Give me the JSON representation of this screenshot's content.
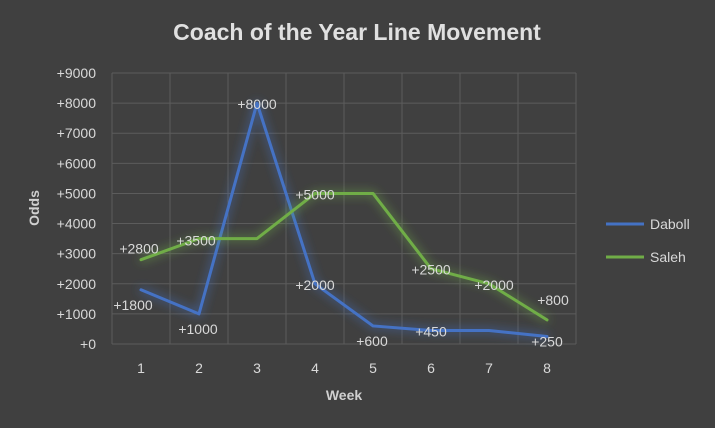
{
  "chart_data": {
    "type": "line",
    "title": "Coach of the Year Line Movement",
    "xlabel": "Week",
    "ylabel": "Odds",
    "categories": [
      "1",
      "2",
      "3",
      "4",
      "5",
      "6",
      "7",
      "8"
    ],
    "ylim": [
      0,
      9000
    ],
    "yticks": [
      0,
      1000,
      2000,
      3000,
      4000,
      5000,
      6000,
      7000,
      8000,
      9000
    ],
    "ytick_labels": [
      "+0",
      "+1000",
      "+2000",
      "+3000",
      "+4000",
      "+5000",
      "+6000",
      "+7000",
      "+8000",
      "+9000"
    ],
    "grid": true,
    "legend_position": "right",
    "series": [
      {
        "name": "Daboll",
        "color": "#4472c4",
        "values": [
          1800,
          1000,
          8000,
          2000,
          600,
          450,
          450,
          250
        ],
        "labels": [
          "+1800",
          "+1000",
          "+8000",
          "+2000",
          "+600",
          "+450",
          "",
          "+250"
        ]
      },
      {
        "name": "Saleh",
        "color": "#70ad47",
        "values": [
          2800,
          3500,
          3500,
          5000,
          5000,
          2500,
          2000,
          800
        ],
        "labels": [
          "+2800",
          "+3500",
          "",
          "+5000",
          "",
          "+2500",
          "+2000",
          "+800"
        ]
      }
    ]
  }
}
